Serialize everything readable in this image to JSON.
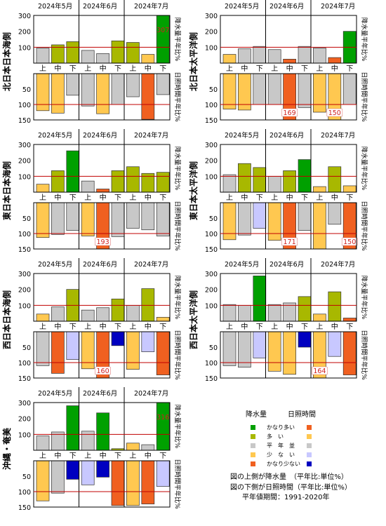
{
  "months": [
    "2024年5月",
    "2024年6月",
    "2024年7月"
  ],
  "dekads": [
    "上",
    "中",
    "下",
    "上",
    "中",
    "下",
    "上",
    "中",
    "下"
  ],
  "precip_axis": {
    "ticks": [
      100,
      200,
      300
    ],
    "top_ticks": [
      300
    ],
    "max": 300,
    "min": 0
  },
  "sun_axis": {
    "ticks": [
      50,
      100,
      150
    ],
    "max": 150,
    "min": 0
  },
  "precip_side_label": "降水量平年比%",
  "sun_side_label": "日照時間平年比%",
  "colors": {
    "very_high": "#00a000",
    "high": "#a8b800",
    "normal": "#c8c8c8",
    "low": "#ffc850",
    "very_low": "#f06020",
    "sun_high": "#c8c8ff",
    "sun_very_high": "#0000c0",
    "reference_line": "#c00000"
  },
  "legend": {
    "precip_header": "降水量",
    "sun_header": "日照時間",
    "categories": [
      "かなり多い",
      "多　い",
      "平　年　並",
      "少　な　い",
      "かなり少ない"
    ],
    "notes": [
      "図の上側が降水量　（平年比:単位%）",
      "図の下側が日照時間（平年比:単位%）",
      "平年値期間：1991-2020年"
    ]
  },
  "chart_data": [
    {
      "type": "bar",
      "region": "北日本日本海側",
      "categories": [
        "5月上",
        "5月中",
        "5月下",
        "6月上",
        "6月中",
        "6月下",
        "7月上",
        "7月中",
        "7月下"
      ],
      "precip": [
        95,
        115,
        135,
        80,
        60,
        140,
        130,
        55,
        307
      ],
      "precip_class": [
        "normal",
        "high",
        "high",
        "normal",
        "normal",
        "high",
        "high",
        "low",
        "very_high"
      ],
      "precip_labels": [
        null,
        null,
        null,
        null,
        null,
        null,
        null,
        null,
        "307"
      ],
      "sunshine": [
        120,
        128,
        70,
        105,
        130,
        100,
        75,
        148,
        68
      ],
      "sunshine_class": [
        "low",
        "low",
        "normal",
        "normal",
        "low",
        "normal",
        "normal",
        "very_low",
        "normal"
      ],
      "sunshine_labels": [
        null,
        null,
        null,
        null,
        null,
        null,
        null,
        null,
        null
      ]
    },
    {
      "type": "bar",
      "region": "北日本太平洋側",
      "categories": [
        "5月上",
        "5月中",
        "5月下",
        "6月上",
        "6月中",
        "6月下",
        "7月上",
        "7月中",
        "7月下"
      ],
      "precip": [
        55,
        90,
        105,
        85,
        25,
        105,
        95,
        35,
        200
      ],
      "precip_class": [
        "low",
        "normal",
        "normal",
        "normal",
        "very_low",
        "normal",
        "normal",
        "very_low",
        "very_high"
      ],
      "precip_labels": [
        null,
        null,
        null,
        null,
        null,
        null,
        null,
        null,
        null
      ],
      "sunshine": [
        115,
        118,
        100,
        100,
        169,
        110,
        125,
        150,
        100
      ],
      "sunshine_class": [
        "low",
        "low",
        "normal",
        "normal",
        "very_low",
        "normal",
        "low",
        "low",
        "normal"
      ],
      "sunshine_labels": [
        null,
        null,
        null,
        null,
        "169",
        null,
        null,
        "150",
        null
      ]
    },
    {
      "type": "bar",
      "region": "東日本日本海側",
      "categories": [
        "5月上",
        "5月中",
        "5月下",
        "6月上",
        "6月中",
        "6月下",
        "7月上",
        "7月中",
        "7月下"
      ],
      "precip": [
        50,
        135,
        260,
        70,
        20,
        135,
        160,
        118,
        125
      ],
      "precip_class": [
        "low",
        "high",
        "very_high",
        "normal",
        "very_low",
        "high",
        "high",
        "high",
        "high"
      ],
      "precip_labels": [
        null,
        null,
        null,
        null,
        null,
        null,
        null,
        null,
        null
      ],
      "sunshine": [
        113,
        103,
        90,
        108,
        193,
        110,
        83,
        88,
        108
      ],
      "sunshine_class": [
        "low",
        "normal",
        "normal",
        "low",
        "very_low",
        "normal",
        "normal",
        "normal",
        "normal"
      ],
      "sunshine_labels": [
        null,
        null,
        null,
        null,
        "193",
        null,
        null,
        null,
        null
      ]
    },
    {
      "type": "bar",
      "region": "東日本太平洋側",
      "categories": [
        "5月上",
        "5月中",
        "5月下",
        "6月上",
        "6月中",
        "6月下",
        "7月上",
        "7月中",
        "7月下"
      ],
      "precip": [
        110,
        180,
        155,
        100,
        135,
        205,
        35,
        160,
        40
      ],
      "precip_class": [
        "normal",
        "high",
        "high",
        "normal",
        "high",
        "very_high",
        "low",
        "high",
        "low"
      ],
      "precip_labels": [
        null,
        null,
        null,
        null,
        null,
        null,
        null,
        null,
        null
      ],
      "sunshine": [
        120,
        105,
        83,
        122,
        171,
        90,
        150,
        70,
        150
      ],
      "sunshine_class": [
        "low",
        "normal",
        "sun_high",
        "low",
        "very_low",
        "normal",
        "low",
        "normal",
        "very_low"
      ],
      "sunshine_labels": [
        null,
        null,
        null,
        null,
        "171",
        null,
        null,
        null,
        "150"
      ]
    },
    {
      "type": "bar",
      "region": "西日本日本海側",
      "categories": [
        "5月上",
        "5月中",
        "5月下",
        "6月上",
        "6月中",
        "6月下",
        "7月上",
        "7月中",
        "7月下"
      ],
      "precip": [
        45,
        90,
        200,
        70,
        85,
        140,
        100,
        205,
        25
      ],
      "precip_class": [
        "low",
        "normal",
        "high",
        "normal",
        "normal",
        "high",
        "normal",
        "high",
        "low"
      ],
      "precip_labels": [
        null,
        null,
        null,
        null,
        null,
        null,
        null,
        null,
        null
      ],
      "sunshine": [
        110,
        135,
        90,
        120,
        160,
        45,
        122,
        65,
        140
      ],
      "sunshine_class": [
        "normal",
        "very_low",
        "sun_high",
        "low",
        "very_low",
        "sun_very_high",
        "low",
        "sun_high",
        "very_low"
      ],
      "sunshine_labels": [
        null,
        null,
        null,
        null,
        "160",
        null,
        null,
        null,
        null
      ]
    },
    {
      "type": "bar",
      "region": "西日本太平洋側",
      "categories": [
        "5月上",
        "5月中",
        "5月下",
        "6月上",
        "6月中",
        "6月下",
        "7月上",
        "7月中",
        "7月下"
      ],
      "precip": [
        105,
        100,
        285,
        105,
        115,
        155,
        45,
        185,
        20
      ],
      "precip_class": [
        "normal",
        "normal",
        "very_high",
        "normal",
        "normal",
        "high",
        "low",
        "high",
        "very_low"
      ],
      "precip_labels": [
        null,
        null,
        null,
        null,
        null,
        null,
        null,
        null,
        null
      ],
      "sunshine": [
        110,
        115,
        85,
        128,
        138,
        50,
        164,
        80,
        140
      ],
      "sunshine_class": [
        "normal",
        "normal",
        "sun_high",
        "low",
        "low",
        "sun_very_high",
        "low",
        "sun_high",
        "very_low"
      ],
      "sunshine_labels": [
        null,
        null,
        null,
        null,
        null,
        null,
        "164",
        null,
        null
      ]
    },
    {
      "type": "bar",
      "region": "沖縄・奄美",
      "categories": [
        "5月上",
        "5月中",
        "5月下",
        "6月上",
        "6月中",
        "6月下",
        "7月上",
        "7月中",
        "7月下"
      ],
      "precip": [
        90,
        115,
        280,
        120,
        235,
        10,
        45,
        35,
        316
      ],
      "precip_class": [
        "normal",
        "normal",
        "very_high",
        "normal",
        "very_high",
        "high",
        "low",
        "normal",
        "very_high"
      ],
      "precip_labels": [
        null,
        null,
        null,
        null,
        null,
        null,
        null,
        null,
        "316"
      ],
      "sunshine": [
        130,
        105,
        60,
        78,
        53,
        145,
        145,
        140,
        83
      ],
      "sunshine_class": [
        "low",
        "normal",
        "sun_very_high",
        "sun_high",
        "sun_very_high",
        "very_low",
        "low",
        "very_low",
        "sun_high"
      ],
      "sunshine_labels": [
        null,
        null,
        null,
        null,
        null,
        null,
        null,
        null,
        null
      ]
    }
  ]
}
